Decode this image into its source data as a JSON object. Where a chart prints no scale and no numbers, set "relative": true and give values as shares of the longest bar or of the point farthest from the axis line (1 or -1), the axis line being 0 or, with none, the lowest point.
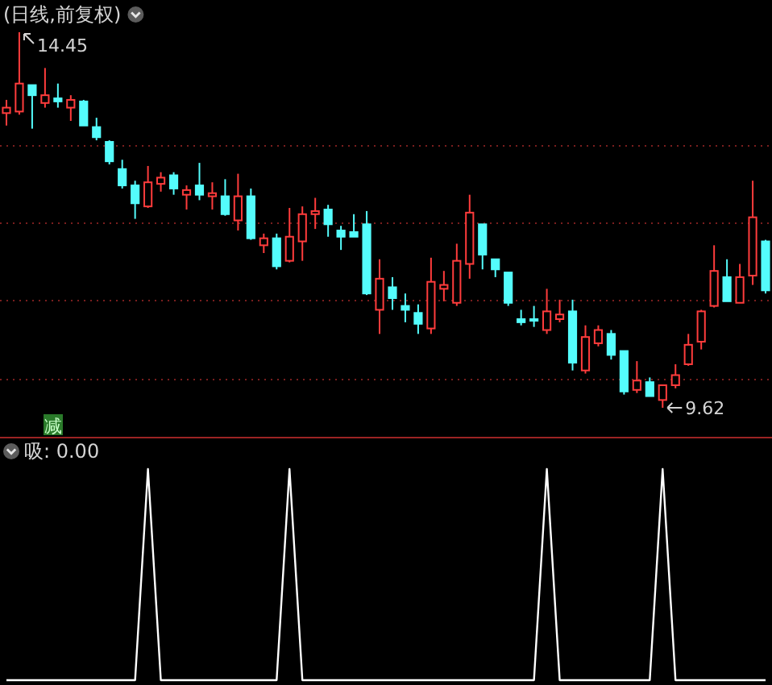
{
  "chart_data": [
    {
      "type": "candlestick",
      "title": "(日线,前复权)",
      "tick_labels": false,
      "grid": "y",
      "yticks": [
        {
          "value": 10,
          "label": null
        },
        {
          "value": 11,
          "label": null
        },
        {
          "value": 12,
          "label": null
        },
        {
          "value": 13,
          "label": null
        }
      ],
      "categories": [
        null,
        null,
        null,
        null,
        null,
        null,
        null,
        null,
        null,
        null,
        null,
        null,
        null,
        null,
        null,
        null,
        null,
        null,
        null,
        null,
        null,
        null,
        null,
        null,
        null,
        null,
        null,
        null,
        null,
        null,
        null,
        null,
        null,
        null,
        null,
        null,
        null,
        null,
        null,
        null,
        null,
        null,
        null,
        null,
        null,
        null,
        null,
        null,
        null,
        null,
        null,
        null,
        null,
        null,
        null,
        null,
        null,
        null,
        null,
        null
      ],
      "ohlc": [
        [
          13.41,
          13.58,
          13.25,
          13.48
        ],
        [
          13.43,
          14.45,
          13.39,
          13.79
        ],
        [
          13.77,
          13.77,
          13.21,
          13.64
        ],
        [
          13.54,
          13.99,
          13.48,
          13.64
        ],
        [
          13.6,
          13.79,
          13.48,
          13.56
        ],
        [
          13.48,
          13.64,
          13.31,
          13.58
        ],
        [
          13.56,
          13.58,
          13.25,
          13.25
        ],
        [
          13.23,
          13.35,
          13.06,
          13.1
        ],
        [
          13.04,
          13.06,
          12.75,
          12.79
        ],
        [
          12.69,
          12.81,
          12.44,
          12.48
        ],
        [
          12.48,
          12.54,
          12.05,
          12.25
        ],
        [
          12.21,
          12.73,
          12.19,
          12.52
        ],
        [
          12.5,
          12.65,
          12.4,
          12.58
        ],
        [
          12.61,
          12.65,
          12.36,
          12.44
        ],
        [
          12.36,
          12.48,
          12.17,
          12.42
        ],
        [
          12.48,
          12.77,
          12.29,
          12.36
        ],
        [
          12.34,
          12.52,
          12.17,
          12.38
        ],
        [
          12.34,
          12.56,
          12.09,
          12.11
        ],
        [
          12.03,
          12.63,
          11.9,
          12.34
        ],
        [
          12.34,
          12.44,
          11.78,
          11.8
        ],
        [
          11.71,
          11.86,
          11.61,
          11.8
        ],
        [
          11.8,
          11.86,
          11.4,
          11.44
        ],
        [
          11.51,
          12.19,
          11.49,
          11.82
        ],
        [
          11.76,
          12.21,
          11.51,
          12.11
        ],
        [
          12.11,
          12.32,
          11.92,
          12.15
        ],
        [
          12.17,
          12.23,
          11.82,
          11.98
        ],
        [
          11.9,
          11.96,
          11.65,
          11.82
        ],
        [
          11.88,
          12.11,
          11.82,
          11.82
        ],
        [
          11.98,
          12.15,
          11.07,
          11.09
        ],
        [
          10.88,
          11.53,
          10.57,
          11.28
        ],
        [
          11.17,
          11.3,
          10.88,
          11.03
        ],
        [
          10.93,
          11.09,
          10.72,
          10.88
        ],
        [
          10.84,
          10.95,
          10.57,
          10.7
        ],
        [
          10.64,
          11.55,
          10.57,
          11.24
        ],
        [
          11.15,
          11.38,
          10.99,
          11.2
        ],
        [
          10.97,
          11.73,
          10.93,
          11.51
        ],
        [
          11.47,
          12.36,
          11.28,
          12.13
        ],
        [
          11.98,
          11.98,
          11.4,
          11.59
        ],
        [
          11.53,
          11.53,
          11.3,
          11.4
        ],
        [
          11.36,
          11.36,
          10.93,
          10.97
        ],
        [
          10.76,
          10.88,
          10.68,
          10.72
        ],
        [
          10.76,
          10.93,
          10.66,
          10.74
        ],
        [
          10.62,
          11.15,
          10.57,
          10.86
        ],
        [
          10.76,
          11.01,
          10.72,
          10.82
        ],
        [
          10.86,
          11.01,
          10.1,
          10.2
        ],
        [
          10.1,
          10.68,
          10.06,
          10.53
        ],
        [
          10.45,
          10.68,
          10.41,
          10.62
        ],
        [
          10.57,
          10.62,
          10.24,
          10.3
        ],
        [
          10.35,
          10.35,
          9.79,
          9.83
        ],
        [
          9.85,
          10.22,
          9.81,
          9.97
        ],
        [
          9.95,
          10.01,
          9.77,
          9.77
        ],
        [
          9.72,
          9.91,
          9.62,
          9.91
        ],
        [
          9.91,
          10.18,
          9.87,
          10.04
        ],
        [
          10.18,
          10.57,
          10.16,
          10.43
        ],
        [
          10.47,
          10.88,
          10.37,
          10.86
        ],
        [
          10.93,
          11.71,
          10.91,
          11.38
        ],
        [
          11.3,
          11.53,
          10.99,
          10.99
        ],
        [
          10.97,
          11.47,
          10.97,
          11.3
        ],
        [
          11.32,
          12.54,
          11.2,
          12.07
        ],
        [
          11.76,
          11.78,
          11.09,
          11.13
        ]
      ],
      "colors": [
        "#ff3c3c",
        "#ff3c3c",
        "#54fcfc",
        "#ff3c3c",
        "#54fcfc",
        "#ff3c3c",
        "#54fcfc",
        "#54fcfc",
        "#54fcfc",
        "#54fcfc",
        "#54fcfc",
        "#ff3c3c",
        "#ff3c3c",
        "#54fcfc",
        "#ff3c3c",
        "#54fcfc",
        "#ff3c3c",
        "#54fcfc",
        "#ff3c3c",
        "#54fcfc",
        "#ff3c3c",
        "#54fcfc",
        "#ff3c3c",
        "#ff3c3c",
        "#ff3c3c",
        "#54fcfc",
        "#54fcfc",
        "#54fcfc",
        "#54fcfc",
        "#ff3c3c",
        "#54fcfc",
        "#54fcfc",
        "#54fcfc",
        "#ff3c3c",
        "#ff3c3c",
        "#ff3c3c",
        "#ff3c3c",
        "#54fcfc",
        "#54fcfc",
        "#54fcfc",
        "#54fcfc",
        "#54fcfc",
        "#ff3c3c",
        "#ff3c3c",
        "#54fcfc",
        "#ff3c3c",
        "#ff3c3c",
        "#54fcfc",
        "#54fcfc",
        "#ff3c3c",
        "#54fcfc",
        "#ff3c3c",
        "#ff3c3c",
        "#ff3c3c",
        "#ff3c3c",
        "#ff3c3c",
        "#54fcfc",
        "#ff3c3c",
        "#ff3c3c",
        "#54fcfc"
      ],
      "annotations": [
        "14.45",
        "9.62",
        "减"
      ]
    },
    {
      "type": "line",
      "title": "吸: 0.00",
      "relative": true,
      "tick_labels": false,
      "categories": [
        null,
        null,
        null,
        null,
        null,
        null,
        null,
        null,
        null,
        null,
        null,
        null,
        null,
        null,
        null,
        null,
        null,
        null,
        null,
        null,
        null,
        null,
        null,
        null,
        null,
        null,
        null,
        null,
        null,
        null,
        null,
        null,
        null,
        null,
        null,
        null,
        null,
        null,
        null,
        null,
        null,
        null,
        null,
        null,
        null,
        null,
        null,
        null,
        null,
        null,
        null,
        null,
        null,
        null,
        null,
        null,
        null,
        null,
        null,
        null
      ],
      "series": [
        {
          "color": "#ffffff",
          "values": [
            0,
            0,
            0,
            0,
            0,
            0,
            0,
            0,
            0,
            0,
            0,
            1,
            0,
            0,
            0,
            0,
            0,
            0,
            0,
            0,
            0,
            0,
            1,
            0,
            0,
            0,
            0,
            0,
            0,
            0,
            0,
            0,
            0,
            0,
            0,
            0,
            0,
            0,
            0,
            0,
            0,
            0,
            1,
            0,
            0,
            0,
            0,
            0,
            0,
            0,
            0,
            1,
            0,
            0,
            0,
            0,
            0,
            0,
            0,
            0
          ]
        }
      ]
    }
  ]
}
